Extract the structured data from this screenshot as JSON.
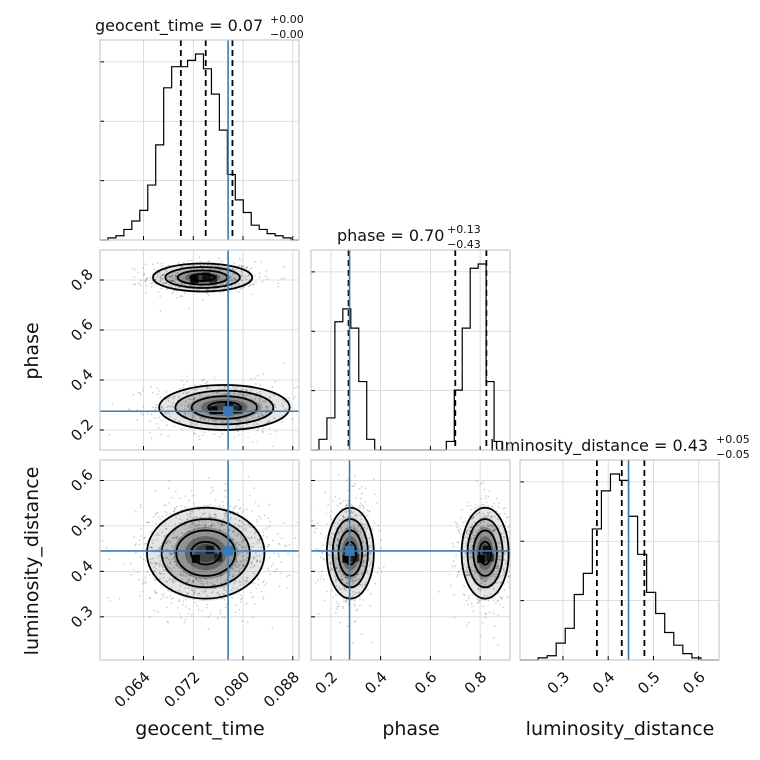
{
  "chart_data": {
    "type": "corner",
    "colors": {
      "truth": "#3a7bb5",
      "samples": "#000000",
      "grid": "#d4d4d4"
    },
    "parameters": [
      {
        "name": "geocent_time",
        "range": [
          0.057,
          0.089
        ],
        "ticks": [
          0.064,
          0.072,
          0.08,
          0.088
        ],
        "tick_labels": [
          "0.064",
          "0.072",
          "0.080",
          "0.088"
        ],
        "title": "geocent_time = 0.07",
        "title_plus": "+0.00",
        "title_minus": "−0.00",
        "quantiles": [
          0.07,
          0.074,
          0.0783
        ],
        "truth": 0.0776,
        "hist_counts": [
          0,
          1,
          2,
          5,
          9,
          14,
          26,
          45,
          72,
          82,
          82,
          85,
          88,
          81,
          69,
          52,
          31,
          19,
          13,
          7,
          5,
          3,
          2,
          1,
          0
        ]
      },
      {
        "name": "phase",
        "range": [
          0.12,
          0.92
        ],
        "ticks": [
          0.2,
          0.4,
          0.6,
          0.8
        ],
        "tick_labels": [
          "0.2",
          "0.4",
          "0.6",
          "0.8"
        ],
        "title": "phase = 0.70",
        "title_plus": "+0.13",
        "title_minus": "−0.43",
        "quantiles": [
          0.271,
          0.7,
          0.825
        ],
        "truth": 0.275,
        "hist_counts": [
          0,
          5,
          15,
          60,
          66,
          57,
          32,
          5,
          0,
          0,
          0,
          0,
          0,
          0,
          0,
          0,
          0,
          4,
          28,
          57,
          85,
          87,
          32,
          4,
          0
        ]
      },
      {
        "name": "luminosity_distance",
        "range": [
          0.205,
          0.645
        ],
        "ticks": [
          0.3,
          0.4,
          0.5,
          0.6
        ],
        "tick_labels": [
          "0.3",
          "0.4",
          "0.5",
          "0.6"
        ],
        "title": "luminosity_distance = 0.43",
        "title_plus": "+0.05",
        "title_minus": "−0.05",
        "quantiles": [
          0.375,
          0.43,
          0.48
        ],
        "truth": 0.445,
        "hist_counts": [
          0,
          0,
          1,
          2,
          8,
          15,
          31,
          41,
          62,
          80,
          88,
          85,
          68,
          50,
          32,
          22,
          13,
          7,
          3,
          1,
          0,
          0
        ]
      }
    ],
    "modes": {
      "geocent_phase": [
        {
          "mx": 0.0735,
          "my": 0.81,
          "sx": 0.0038,
          "sy": 0.028,
          "w": 0.5
        },
        {
          "mx": 0.077,
          "my": 0.29,
          "sx": 0.005,
          "sy": 0.045,
          "w": 0.5
        }
      ],
      "geocent_distance": [
        {
          "mx": 0.074,
          "my": 0.44,
          "sx": 0.0045,
          "sy": 0.05,
          "w": 1.0
        }
      ],
      "phase_distance": [
        {
          "mx": 0.278,
          "my": 0.44,
          "sx": 0.045,
          "sy": 0.05,
          "w": 0.5
        },
        {
          "mx": 0.82,
          "my": 0.44,
          "sx": 0.045,
          "sy": 0.05,
          "w": 0.5
        }
      ]
    }
  }
}
